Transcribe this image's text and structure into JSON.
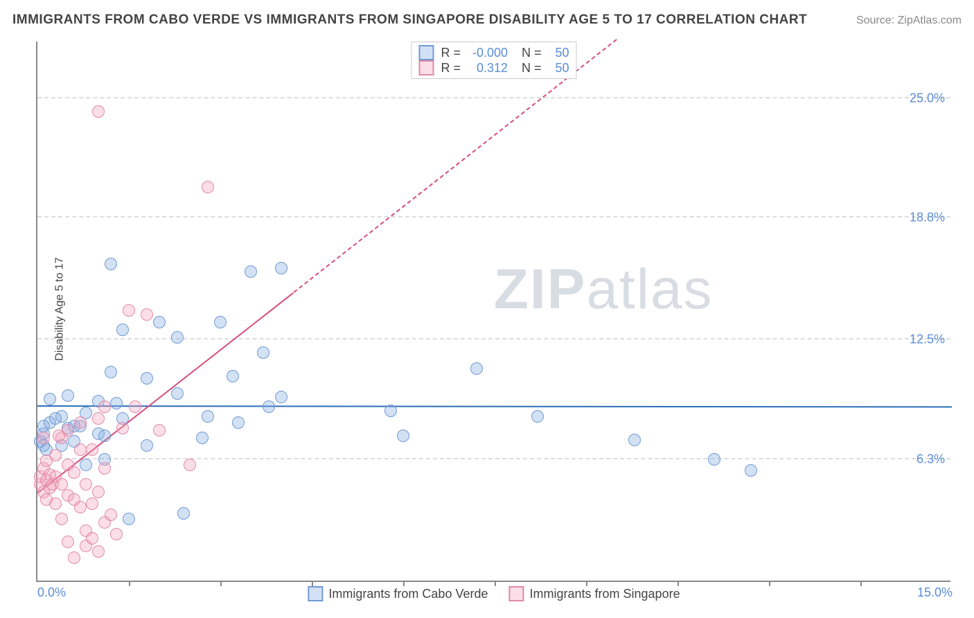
{
  "title": "IMMIGRANTS FROM CABO VERDE VS IMMIGRANTS FROM SINGAPORE DISABILITY AGE 5 TO 17 CORRELATION CHART",
  "source": "Source: ZipAtlas.com",
  "watermark_a": "ZIP",
  "watermark_b": "atlas",
  "chart": {
    "type": "scatter",
    "ylabel": "Disability Age 5 to 17",
    "xlim": [
      0,
      15.0
    ],
    "ylim": [
      0,
      28.0
    ],
    "yticks": [
      {
        "v": 6.3,
        "label": "6.3%"
      },
      {
        "v": 12.5,
        "label": "12.5%"
      },
      {
        "v": 18.8,
        "label": "18.8%"
      },
      {
        "v": 25.0,
        "label": "25.0%"
      }
    ],
    "xticks": [
      {
        "v": 0.0,
        "label": "0.0%"
      },
      {
        "v": 15.0,
        "label": "15.0%"
      }
    ],
    "xtick_marks": [
      1.5,
      3.0,
      4.5,
      6.0,
      7.5,
      9.0,
      10.5,
      12.0,
      13.5
    ],
    "background_color": "#ffffff",
    "grid_color": "#dddddd",
    "axis_color": "#888888",
    "value_color": "#5b8dd6",
    "marker_radius": 9,
    "series": [
      {
        "name": "Immigrants from Cabo Verde",
        "fill": "rgba(130,170,225,0.35)",
        "stroke": "#6f9ad3",
        "line_color": "#2b6fb8",
        "r_value": "-0.000",
        "n_value": "50",
        "regression": {
          "x1": 0.0,
          "y1": 9.0,
          "x2": 15.0,
          "y2": 8.95,
          "dashed": false
        },
        "points": [
          [
            0.05,
            7.2
          ],
          [
            0.1,
            7.6
          ],
          [
            0.1,
            7.0
          ],
          [
            0.1,
            8.0
          ],
          [
            0.2,
            8.2
          ],
          [
            0.15,
            6.8
          ],
          [
            0.2,
            9.4
          ],
          [
            0.4,
            7.0
          ],
          [
            0.4,
            8.5
          ],
          [
            0.5,
            9.6
          ],
          [
            0.5,
            7.9
          ],
          [
            0.6,
            8.0
          ],
          [
            0.6,
            7.2
          ],
          [
            0.8,
            8.7
          ],
          [
            0.8,
            6.0
          ],
          [
            1.0,
            9.3
          ],
          [
            1.0,
            7.6
          ],
          [
            1.1,
            7.5
          ],
          [
            1.1,
            6.3
          ],
          [
            1.2,
            16.4
          ],
          [
            1.2,
            10.8
          ],
          [
            1.3,
            9.2
          ],
          [
            1.4,
            8.4
          ],
          [
            1.4,
            13.0
          ],
          [
            1.5,
            3.2
          ],
          [
            1.8,
            10.5
          ],
          [
            1.8,
            7.0
          ],
          [
            2.0,
            13.4
          ],
          [
            2.3,
            12.6
          ],
          [
            2.3,
            9.7
          ],
          [
            2.4,
            3.5
          ],
          [
            2.7,
            7.4
          ],
          [
            2.8,
            8.5
          ],
          [
            3.0,
            13.4
          ],
          [
            3.2,
            10.6
          ],
          [
            3.3,
            8.2
          ],
          [
            3.5,
            16.0
          ],
          [
            3.7,
            11.8
          ],
          [
            3.8,
            9.0
          ],
          [
            4.0,
            16.2
          ],
          [
            4.0,
            9.5
          ],
          [
            5.8,
            8.8
          ],
          [
            6.0,
            7.5
          ],
          [
            7.2,
            11.0
          ],
          [
            8.2,
            8.5
          ],
          [
            9.8,
            7.3
          ],
          [
            11.1,
            6.3
          ],
          [
            11.7,
            5.7
          ],
          [
            0.3,
            8.4
          ],
          [
            0.7,
            8.0
          ]
        ]
      },
      {
        "name": "Immigrants from Singapore",
        "fill": "rgba(244,160,185,0.35)",
        "stroke": "#e18aa8",
        "line_color": "#d64d7a",
        "r_value": "0.312",
        "n_value": "50",
        "regression": {
          "x1": 0.0,
          "y1": 4.5,
          "x2": 9.5,
          "y2": 28.0,
          "dashed_from_x": 4.2
        },
        "points": [
          [
            0.05,
            5.0
          ],
          [
            0.05,
            5.4
          ],
          [
            0.1,
            4.6
          ],
          [
            0.1,
            5.8
          ],
          [
            0.15,
            5.2
          ],
          [
            0.15,
            4.2
          ],
          [
            0.15,
            6.2
          ],
          [
            0.2,
            5.5
          ],
          [
            0.2,
            4.8
          ],
          [
            0.25,
            5.0
          ],
          [
            0.3,
            5.4
          ],
          [
            0.3,
            4.0
          ],
          [
            0.3,
            6.5
          ],
          [
            0.4,
            5.0
          ],
          [
            0.4,
            7.4
          ],
          [
            0.4,
            3.2
          ],
          [
            0.5,
            4.4
          ],
          [
            0.5,
            6.0
          ],
          [
            0.5,
            7.8
          ],
          [
            0.5,
            2.0
          ],
          [
            0.6,
            5.6
          ],
          [
            0.6,
            4.2
          ],
          [
            0.6,
            1.2
          ],
          [
            0.7,
            6.8
          ],
          [
            0.7,
            3.8
          ],
          [
            0.7,
            8.2
          ],
          [
            0.8,
            1.8
          ],
          [
            0.8,
            5.0
          ],
          [
            0.8,
            2.6
          ],
          [
            0.9,
            4.0
          ],
          [
            0.9,
            6.8
          ],
          [
            0.9,
            2.2
          ],
          [
            1.0,
            8.4
          ],
          [
            1.0,
            1.5
          ],
          [
            1.0,
            4.6
          ],
          [
            1.1,
            3.0
          ],
          [
            1.1,
            5.8
          ],
          [
            1.1,
            9.0
          ],
          [
            1.2,
            3.4
          ],
          [
            1.3,
            2.4
          ],
          [
            1.4,
            7.9
          ],
          [
            1.5,
            14.0
          ],
          [
            1.6,
            9.0
          ],
          [
            1.8,
            13.8
          ],
          [
            2.0,
            7.8
          ],
          [
            2.5,
            6.0
          ],
          [
            2.8,
            20.4
          ],
          [
            1.0,
            24.3
          ],
          [
            0.1,
            7.4
          ],
          [
            0.35,
            7.5
          ]
        ]
      }
    ],
    "legend_bottom": [
      {
        "label": "Immigrants from Cabo Verde",
        "fill": "rgba(130,170,225,0.35)",
        "stroke": "#6f9ad3"
      },
      {
        "label": "Immigrants from Singapore",
        "fill": "rgba(244,160,185,0.35)",
        "stroke": "#e18aa8"
      }
    ]
  }
}
